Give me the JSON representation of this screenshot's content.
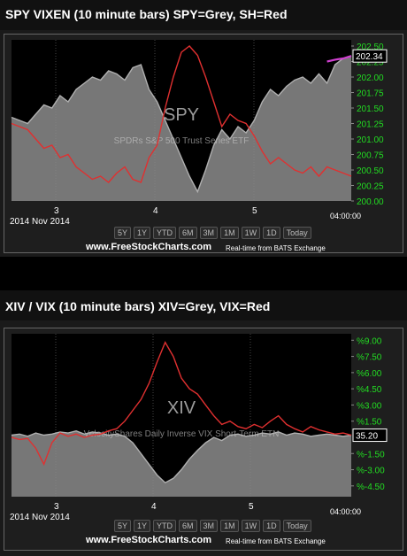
{
  "chart_data": [
    {
      "type": "line",
      "title": "SPY VIXEN (10 minute bars) SPY=Grey, SH=Red",
      "watermark_symbol": "SPY",
      "watermark_name": "SPDRs S&P 500 Trust Series ETF",
      "x_ticks": [
        "3",
        "4",
        "5"
      ],
      "date_label": "2014 Nov 2014",
      "time_label": "04:00:00",
      "y_ticks": [
        "202.50",
        "202.25",
        "202.00",
        "201.75",
        "201.50",
        "201.25",
        "201.00",
        "200.75",
        "200.50",
        "200.25",
        "200.00"
      ],
      "ylim": [
        200.0,
        202.6
      ],
      "last_value": "202.34",
      "series": [
        {
          "name": "SPY",
          "color": "#b0b0b0",
          "values": [
            201.35,
            201.3,
            201.25,
            201.4,
            201.55,
            201.5,
            201.7,
            201.6,
            201.8,
            201.9,
            202.0,
            201.95,
            202.1,
            202.05,
            201.95,
            202.15,
            202.2,
            201.8,
            201.6,
            201.3,
            201.0,
            200.7,
            200.4,
            200.15,
            200.5,
            200.9,
            201.15,
            201.0,
            201.2,
            201.1,
            201.3,
            201.6,
            201.8,
            201.7,
            201.85,
            201.95,
            202.0,
            201.9,
            202.05,
            201.9,
            202.2,
            202.3,
            202.34
          ]
        },
        {
          "name": "SH",
          "color": "#e03030",
          "values": [
            201.25,
            201.2,
            201.15,
            201.0,
            200.85,
            200.9,
            200.7,
            200.75,
            200.55,
            200.45,
            200.35,
            200.4,
            200.3,
            200.45,
            200.55,
            200.35,
            200.3,
            200.7,
            200.9,
            201.5,
            202.0,
            202.4,
            202.5,
            202.35,
            202.0,
            201.6,
            201.2,
            201.4,
            201.3,
            201.25,
            201.05,
            200.8,
            200.6,
            200.7,
            200.6,
            200.5,
            200.45,
            200.55,
            200.4,
            200.55,
            200.5,
            200.45,
            200.4
          ]
        },
        {
          "name": "",
          "color": "#d040d0",
          "values": [
            null,
            null,
            null,
            null,
            null,
            null,
            null,
            null,
            null,
            null,
            null,
            null,
            null,
            null,
            null,
            null,
            null,
            null,
            null,
            null,
            null,
            null,
            null,
            null,
            null,
            null,
            null,
            null,
            null,
            null,
            null,
            null,
            null,
            null,
            null,
            null,
            null,
            null,
            null,
            202.25,
            202.28,
            202.3,
            202.34
          ]
        }
      ]
    },
    {
      "type": "line",
      "title": "XIV / VIX (10 minute bars) XIV=Grey, VIX=Red",
      "watermark_symbol": "XIV",
      "watermark_name": "VelocityShares Daily Inverse VIX Short-Term ETN",
      "x_ticks": [
        "3",
        "4",
        "5"
      ],
      "date_label": "2014 Nov 2014",
      "time_label": "04:00:00",
      "y_ticks": [
        "%9.00",
        "%7.50",
        "%6.00",
        "%4.50",
        "%3.00",
        "%1.50",
        "%-1.50",
        "%-3.00",
        "%-4.50"
      ],
      "ylim": [
        -5.5,
        9.6
      ],
      "last_value": "35.20",
      "series": [
        {
          "name": "XIV",
          "color": "#b0b0b0",
          "values": [
            0.2,
            0.3,
            0.1,
            0.4,
            0.2,
            0.3,
            0.5,
            0.4,
            0.6,
            0.3,
            0.5,
            0.4,
            0.2,
            0.3,
            0.1,
            -0.5,
            -1.5,
            -2.5,
            -3.5,
            -4.2,
            -3.8,
            -3.0,
            -2.0,
            -1.2,
            -0.5,
            0.0,
            -0.3,
            0.2,
            0.3,
            0.1,
            0.2,
            0.4,
            0.3,
            0.5,
            0.2,
            0.4,
            0.3,
            0.1,
            0.2,
            0.3,
            0.2,
            0.1,
            0.2
          ]
        },
        {
          "name": "VIX",
          "color": "#e03030",
          "values": [
            0.0,
            -0.2,
            -0.1,
            -1.0,
            -2.5,
            -0.5,
            0.4,
            0.1,
            0.3,
            0.0,
            0.2,
            0.3,
            0.6,
            0.8,
            1.5,
            2.5,
            3.5,
            5.0,
            7.0,
            8.8,
            7.5,
            5.5,
            4.5,
            4.0,
            3.0,
            2.0,
            1.2,
            1.5,
            1.0,
            0.8,
            1.2,
            0.9,
            1.5,
            2.0,
            1.2,
            0.8,
            0.5,
            1.0,
            0.7,
            0.5,
            0.3,
            0.4,
            0.2
          ]
        }
      ]
    }
  ],
  "range_buttons": [
    "5Y",
    "1Y",
    "YTD",
    "6M",
    "3M",
    "1M",
    "1W",
    "1D",
    "Today"
  ],
  "footer": {
    "site": "www.FreeStockCharts.com",
    "realtime": "Real-time from BATS Exchange"
  }
}
